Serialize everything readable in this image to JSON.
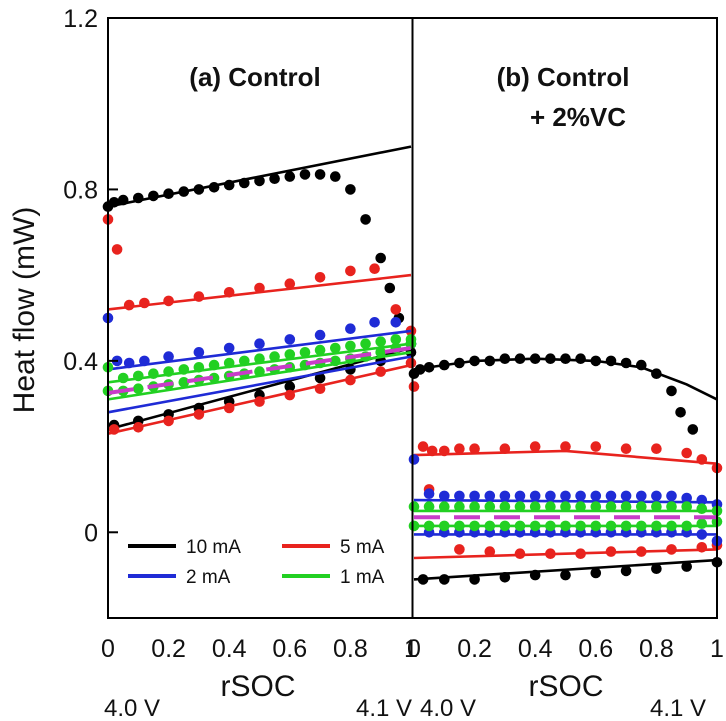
{
  "chart_data": {
    "type": "scatter",
    "ylabel": "Heat flow (mW)",
    "xlabel": "rSOC",
    "ylim": [
      -0.2,
      1.2
    ],
    "xlim": [
      0,
      1
    ],
    "yticks": [
      "1.2",
      "0.8",
      "0.4",
      "0"
    ],
    "ytick_values": [
      1.2,
      0.8,
      0.4,
      0
    ],
    "xticks": [
      "0",
      "0.2",
      "0.4",
      "0.6",
      "0.8",
      "1"
    ],
    "xtick_values": [
      0,
      0.2,
      0.4,
      0.6,
      0.8,
      1
    ],
    "voltage_labels": {
      "start": "4.0 V",
      "end": "4.1 V"
    },
    "legend": {
      "placement": "bottom-left",
      "entries": [
        {
          "label": "10 mA",
          "color": "#000000",
          "style": "solid"
        },
        {
          "label": "5 mA",
          "color": "#e8231e",
          "style": "solid"
        },
        {
          "label": "2 mA",
          "color": "#1f2bd6",
          "style": "solid"
        },
        {
          "label": "1 mA",
          "color": "#22d022",
          "style": "solid"
        }
      ]
    },
    "dashed_line_color": "#c83cc8",
    "panels": [
      {
        "title_lines": [
          "(a) Control"
        ],
        "series": [
          {
            "color": "#000000",
            "kind": "points",
            "x": [
              0,
              0.02,
              0.05,
              0.1,
              0.15,
              0.2,
              0.25,
              0.3,
              0.35,
              0.4,
              0.45,
              0.5,
              0.55,
              0.6,
              0.65,
              0.7,
              0.75,
              0.8,
              0.85,
              0.9,
              0.93,
              0.96,
              1.0
            ],
            "y": [
              0.76,
              0.77,
              0.775,
              0.78,
              0.785,
              0.79,
              0.795,
              0.8,
              0.805,
              0.81,
              0.815,
              0.82,
              0.825,
              0.83,
              0.835,
              0.835,
              0.83,
              0.8,
              0.73,
              0.64,
              0.57,
              0.5,
              0.44
            ]
          },
          {
            "color": "#000000",
            "kind": "line",
            "x": [
              0,
              1
            ],
            "y": [
              0.76,
              0.9
            ]
          },
          {
            "color": "#000000",
            "kind": "points",
            "x": [
              0.02,
              0.1,
              0.2,
              0.3,
              0.4,
              0.5,
              0.6,
              0.7,
              0.8,
              0.9,
              1.0
            ],
            "y": [
              0.25,
              0.26,
              0.275,
              0.29,
              0.305,
              0.32,
              0.34,
              0.36,
              0.38,
              0.4,
              0.42
            ]
          },
          {
            "color": "#000000",
            "kind": "line",
            "x": [
              0,
              1
            ],
            "y": [
              0.24,
              0.43
            ]
          },
          {
            "color": "#e8231e",
            "kind": "points",
            "x": [
              0,
              0.03,
              0.07,
              0.12,
              0.2,
              0.3,
              0.4,
              0.5,
              0.6,
              0.7,
              0.8,
              0.88,
              0.95,
              1.0
            ],
            "y": [
              0.73,
              0.66,
              0.53,
              0.535,
              0.54,
              0.55,
              0.56,
              0.57,
              0.58,
              0.595,
              0.61,
              0.615,
              0.52,
              0.47
            ]
          },
          {
            "color": "#e8231e",
            "kind": "line",
            "x": [
              0,
              1
            ],
            "y": [
              0.52,
              0.6
            ]
          },
          {
            "color": "#e8231e",
            "kind": "points",
            "x": [
              0.02,
              0.1,
              0.2,
              0.3,
              0.4,
              0.5,
              0.6,
              0.7,
              0.8,
              0.9,
              1.0
            ],
            "y": [
              0.24,
              0.245,
              0.26,
              0.275,
              0.29,
              0.305,
              0.32,
              0.335,
              0.355,
              0.375,
              0.395
            ]
          },
          {
            "color": "#e8231e",
            "kind": "line",
            "x": [
              0,
              1
            ],
            "y": [
              0.23,
              0.39
            ]
          },
          {
            "color": "#1f2bd6",
            "kind": "points",
            "x": [
              0,
              0.03,
              0.07,
              0.12,
              0.2,
              0.3,
              0.4,
              0.5,
              0.6,
              0.7,
              0.8,
              0.88,
              0.95,
              1.0
            ],
            "y": [
              0.5,
              0.4,
              0.395,
              0.4,
              0.41,
              0.42,
              0.43,
              0.44,
              0.45,
              0.46,
              0.475,
              0.49,
              0.49,
              0.44
            ]
          },
          {
            "color": "#1f2bd6",
            "kind": "line",
            "x": [
              0,
              1
            ],
            "y": [
              0.38,
              0.47
            ]
          },
          {
            "color": "#1f2bd6",
            "kind": "line",
            "x": [
              0,
              1
            ],
            "y": [
              0.28,
              0.41
            ]
          },
          {
            "color": "#22d022",
            "kind": "points",
            "x": [
              0,
              0.05,
              0.1,
              0.15,
              0.2,
              0.25,
              0.3,
              0.35,
              0.4,
              0.45,
              0.5,
              0.55,
              0.6,
              0.65,
              0.7,
              0.75,
              0.8,
              0.85,
              0.9,
              0.95,
              1.0
            ],
            "y": [
              0.385,
              0.36,
              0.365,
              0.37,
              0.375,
              0.38,
              0.385,
              0.39,
              0.395,
              0.4,
              0.405,
              0.41,
              0.415,
              0.42,
              0.425,
              0.43,
              0.435,
              0.44,
              0.445,
              0.45,
              0.45
            ]
          },
          {
            "color": "#22d022",
            "kind": "points",
            "x": [
              0,
              0.05,
              0.1,
              0.15,
              0.2,
              0.25,
              0.3,
              0.35,
              0.4,
              0.45,
              0.5,
              0.55,
              0.6,
              0.65,
              0.7,
              0.75,
              0.8,
              0.85,
              0.9,
              0.95,
              1.0
            ],
            "y": [
              0.33,
              0.33,
              0.335,
              0.34,
              0.345,
              0.35,
              0.355,
              0.36,
              0.365,
              0.37,
              0.375,
              0.38,
              0.385,
              0.39,
              0.395,
              0.4,
              0.405,
              0.41,
              0.42,
              0.43,
              0.44
            ]
          },
          {
            "color": "#22d022",
            "kind": "line",
            "x": [
              0,
              1
            ],
            "y": [
              0.35,
              0.44
            ]
          },
          {
            "color": "#22d022",
            "kind": "line",
            "x": [
              0,
              1
            ],
            "y": [
              0.31,
              0.42
            ]
          },
          {
            "color": "#c83cc8",
            "kind": "dashed",
            "x": [
              0,
              1
            ],
            "y": [
              0.325,
              0.43
            ]
          }
        ]
      },
      {
        "title_lines": [
          "(b) Control",
          "+ 2%VC"
        ],
        "series": [
          {
            "color": "#000000",
            "kind": "points",
            "x": [
              0,
              0.02,
              0.05,
              0.1,
              0.15,
              0.2,
              0.25,
              0.3,
              0.35,
              0.4,
              0.45,
              0.5,
              0.55,
              0.6,
              0.65,
              0.7,
              0.75,
              0.8,
              0.85,
              0.88,
              0.92
            ],
            "y": [
              0.37,
              0.38,
              0.385,
              0.39,
              0.395,
              0.4,
              0.4,
              0.405,
              0.405,
              0.405,
              0.405,
              0.405,
              0.405,
              0.4,
              0.4,
              0.395,
              0.39,
              0.37,
              0.33,
              0.28,
              0.24
            ]
          },
          {
            "color": "#000000",
            "kind": "line",
            "x": [
              0,
              0.2,
              0.4,
              0.6,
              0.75,
              0.9,
              1.0
            ],
            "y": [
              0.38,
              0.4,
              0.405,
              0.4,
              0.385,
              0.345,
              0.31
            ]
          },
          {
            "color": "#000000",
            "kind": "points",
            "x": [
              0.03,
              0.1,
              0.2,
              0.3,
              0.4,
              0.5,
              0.6,
              0.7,
              0.8,
              0.9,
              1.0
            ],
            "y": [
              -0.11,
              -0.11,
              -0.11,
              -0.105,
              -0.1,
              -0.1,
              -0.095,
              -0.09,
              -0.085,
              -0.08,
              -0.07
            ]
          },
          {
            "color": "#000000",
            "kind": "line",
            "x": [
              0,
              1
            ],
            "y": [
              -0.11,
              -0.065
            ]
          },
          {
            "color": "#e8231e",
            "kind": "points",
            "x": [
              0,
              0.03,
              0.06,
              0.1,
              0.15,
              0.2,
              0.3,
              0.4,
              0.5,
              0.6,
              0.7,
              0.8,
              0.9,
              0.95,
              1.0
            ],
            "y": [
              0.34,
              0.2,
              0.19,
              0.19,
              0.195,
              0.195,
              0.195,
              0.2,
              0.2,
              0.2,
              0.195,
              0.195,
              0.185,
              0.17,
              0.15
            ]
          },
          {
            "color": "#e8231e",
            "kind": "line",
            "x": [
              0,
              0.5,
              1.0
            ],
            "y": [
              0.18,
              0.19,
              0.16
            ]
          },
          {
            "color": "#e8231e",
            "kind": "points",
            "x": [
              0.05,
              0.15,
              0.25,
              0.35,
              0.45,
              0.55,
              0.65,
              0.75,
              0.85,
              0.95,
              1.0
            ],
            "y": [
              0.1,
              -0.04,
              -0.045,
              -0.05,
              -0.05,
              -0.05,
              -0.045,
              -0.045,
              -0.04,
              -0.035,
              -0.03
            ]
          },
          {
            "color": "#e8231e",
            "kind": "line",
            "x": [
              0,
              1
            ],
            "y": [
              -0.06,
              -0.04
            ]
          },
          {
            "color": "#1f2bd6",
            "kind": "points",
            "x": [
              0,
              0.05,
              0.1,
              0.15,
              0.2,
              0.25,
              0.3,
              0.35,
              0.4,
              0.45,
              0.5,
              0.55,
              0.6,
              0.65,
              0.7,
              0.75,
              0.8,
              0.85,
              0.9,
              0.95,
              1.0
            ],
            "y": [
              0.17,
              0.09,
              0.085,
              0.085,
              0.085,
              0.085,
              0.085,
              0.085,
              0.085,
              0.085,
              0.085,
              0.085,
              0.085,
              0.085,
              0.085,
              0.085,
              0.085,
              0.085,
              0.08,
              0.075,
              0.065
            ]
          },
          {
            "color": "#1f2bd6",
            "kind": "points",
            "x": [
              0.05,
              0.1,
              0.15,
              0.2,
              0.25,
              0.3,
              0.35,
              0.4,
              0.45,
              0.5,
              0.55,
              0.6,
              0.65,
              0.7,
              0.75,
              0.8,
              0.85,
              0.9,
              0.95,
              1.0
            ],
            "y": [
              0.0,
              0.0,
              0.0,
              0.0,
              0.0,
              0.0,
              0.0,
              0.0,
              0.0,
              0.0,
              0.0,
              0.0,
              0.0,
              0.0,
              0.0,
              0.0,
              0.0,
              0.0,
              -0.005,
              -0.02
            ]
          },
          {
            "color": "#1f2bd6",
            "kind": "line",
            "x": [
              0,
              1
            ],
            "y": [
              0.075,
              0.07
            ]
          },
          {
            "color": "#1f2bd6",
            "kind": "line",
            "x": [
              0,
              1
            ],
            "y": [
              -0.005,
              -0.005
            ]
          },
          {
            "color": "#22d022",
            "kind": "points",
            "x": [
              0,
              0.05,
              0.1,
              0.15,
              0.2,
              0.25,
              0.3,
              0.35,
              0.4,
              0.45,
              0.5,
              0.55,
              0.6,
              0.65,
              0.7,
              0.75,
              0.8,
              0.85,
              0.9,
              0.95,
              1.0
            ],
            "y": [
              0.06,
              0.06,
              0.06,
              0.06,
              0.06,
              0.06,
              0.06,
              0.06,
              0.06,
              0.06,
              0.06,
              0.06,
              0.06,
              0.06,
              0.06,
              0.06,
              0.06,
              0.06,
              0.06,
              0.055,
              0.05
            ]
          },
          {
            "color": "#22d022",
            "kind": "points",
            "x": [
              0,
              0.05,
              0.1,
              0.15,
              0.2,
              0.25,
              0.3,
              0.35,
              0.4,
              0.45,
              0.5,
              0.55,
              0.6,
              0.65,
              0.7,
              0.75,
              0.8,
              0.85,
              0.9,
              0.95,
              1.0
            ],
            "y": [
              0.015,
              0.015,
              0.015,
              0.015,
              0.015,
              0.015,
              0.015,
              0.015,
              0.015,
              0.015,
              0.015,
              0.015,
              0.015,
              0.015,
              0.015,
              0.015,
              0.015,
              0.015,
              0.015,
              0.02,
              0.025
            ]
          },
          {
            "color": "#22d022",
            "kind": "line",
            "x": [
              0,
              1
            ],
            "y": [
              0.05,
              0.05
            ]
          },
          {
            "color": "#22d022",
            "kind": "line",
            "x": [
              0,
              1
            ],
            "y": [
              0.015,
              0.015
            ]
          },
          {
            "color": "#c83cc8",
            "kind": "dashed",
            "x": [
              0,
              1
            ],
            "y": [
              0.035,
              0.035
            ]
          }
        ]
      }
    ]
  }
}
